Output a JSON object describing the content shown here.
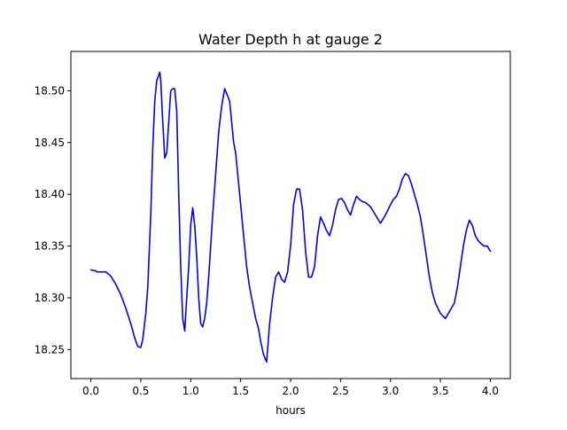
{
  "chart_data": {
    "type": "line",
    "title": "Water Depth h at gauge 2",
    "xlabel": "hours",
    "ylabel": "",
    "xlim": [
      -0.2,
      4.2
    ],
    "ylim": [
      18.222,
      18.538
    ],
    "xticks": [
      0.0,
      0.5,
      1.0,
      1.5,
      2.0,
      2.5,
      3.0,
      3.5,
      4.0
    ],
    "xtick_labels": [
      "0.0",
      "0.5",
      "1.0",
      "1.5",
      "2.0",
      "2.5",
      "3.0",
      "3.5",
      "4.0"
    ],
    "yticks": [
      18.25,
      18.3,
      18.35,
      18.4,
      18.45,
      18.5
    ],
    "ytick_labels": [
      "18.25",
      "18.30",
      "18.35",
      "18.40",
      "18.45",
      "18.50"
    ],
    "grid": false,
    "series": [
      {
        "color": "#0000ff",
        "x": [
          0.0,
          0.05,
          0.06,
          0.15,
          0.2,
          0.25,
          0.3,
          0.35,
          0.4,
          0.44,
          0.47,
          0.5,
          0.52,
          0.55,
          0.57,
          0.6,
          0.62,
          0.64,
          0.66,
          0.68,
          0.69,
          0.7,
          0.72,
          0.74,
          0.76,
          0.78,
          0.8,
          0.82,
          0.84,
          0.86,
          0.88,
          0.9,
          0.92,
          0.94,
          0.96,
          0.98,
          1.0,
          1.02,
          1.04,
          1.06,
          1.08,
          1.1,
          1.12,
          1.14,
          1.16,
          1.18,
          1.2,
          1.22,
          1.25,
          1.28,
          1.31,
          1.34,
          1.37,
          1.39,
          1.41,
          1.43,
          1.45,
          1.47,
          1.5,
          1.53,
          1.56,
          1.59,
          1.62,
          1.65,
          1.68,
          1.7,
          1.73,
          1.76,
          1.79,
          1.82,
          1.85,
          1.88,
          1.91,
          1.94,
          1.97,
          2.0,
          2.03,
          2.06,
          2.09,
          2.12,
          2.15,
          2.18,
          2.21,
          2.24,
          2.27,
          2.3,
          2.33,
          2.36,
          2.39,
          2.42,
          2.45,
          2.48,
          2.51,
          2.54,
          2.57,
          2.6,
          2.63,
          2.66,
          2.69,
          2.72,
          2.75,
          2.8,
          2.85,
          2.9,
          2.95,
          3.0,
          3.03,
          3.06,
          3.09,
          3.12,
          3.15,
          3.18,
          3.21,
          3.24,
          3.27,
          3.3,
          3.33,
          3.36,
          3.39,
          3.42,
          3.45,
          3.5,
          3.55,
          3.58,
          3.61,
          3.64,
          3.67,
          3.7,
          3.73,
          3.76,
          3.79,
          3.82,
          3.85,
          3.88,
          3.91,
          3.94,
          3.97,
          4.0
        ],
        "y": [
          18.327,
          18.326,
          18.325,
          18.325,
          18.321,
          18.313,
          18.303,
          18.29,
          18.275,
          18.261,
          18.253,
          18.252,
          18.26,
          18.285,
          18.31,
          18.38,
          18.445,
          18.49,
          18.51,
          18.515,
          18.518,
          18.51,
          18.47,
          18.435,
          18.44,
          18.47,
          18.5,
          18.502,
          18.502,
          18.48,
          18.4,
          18.33,
          18.28,
          18.268,
          18.3,
          18.33,
          18.37,
          18.387,
          18.37,
          18.34,
          18.3,
          18.275,
          18.272,
          18.28,
          18.295,
          18.32,
          18.35,
          18.38,
          18.42,
          18.46,
          18.485,
          18.502,
          18.495,
          18.49,
          18.47,
          18.45,
          18.44,
          18.42,
          18.39,
          18.36,
          18.33,
          18.31,
          18.295,
          18.28,
          18.27,
          18.258,
          18.245,
          18.238,
          18.275,
          18.3,
          18.32,
          18.325,
          18.318,
          18.315,
          18.325,
          18.35,
          18.39,
          18.405,
          18.405,
          18.385,
          18.345,
          18.32,
          18.32,
          18.33,
          18.36,
          18.378,
          18.372,
          18.365,
          18.36,
          18.37,
          18.385,
          18.395,
          18.396,
          18.392,
          18.385,
          18.38,
          18.39,
          18.398,
          18.395,
          18.393,
          18.392,
          18.388,
          18.38,
          18.372,
          18.38,
          18.39,
          18.395,
          18.398,
          18.405,
          18.415,
          18.42,
          18.418,
          18.41,
          18.4,
          18.39,
          18.378,
          18.36,
          18.34,
          18.32,
          18.305,
          18.295,
          18.285,
          18.28,
          18.285,
          18.29,
          18.295,
          18.31,
          18.33,
          18.35,
          18.365,
          18.375,
          18.37,
          18.36,
          18.355,
          18.352,
          18.35,
          18.35,
          18.345
        ]
      }
    ]
  }
}
